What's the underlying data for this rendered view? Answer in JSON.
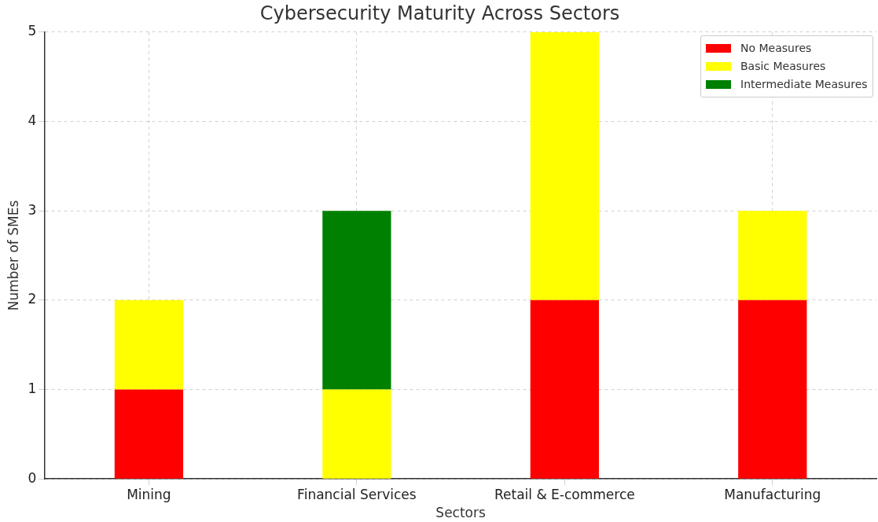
{
  "chart_data": {
    "type": "bar",
    "title": "Cybersecurity Maturity Across Sectors",
    "xlabel": "Sectors",
    "ylabel": "Number of SMEs",
    "categories": [
      "Mining",
      "Financial Services",
      "Retail & E-commerce",
      "Manufacturing"
    ],
    "stacked": true,
    "grid": true,
    "legend": "top right",
    "ylim": [
      0,
      5
    ],
    "yticks": [
      0,
      1,
      2,
      3,
      4,
      5
    ],
    "series": [
      {
        "name": "No Measures",
        "color": "#ff0000",
        "values": [
          1,
          0,
          2,
          2
        ]
      },
      {
        "name": "Basic Measures",
        "color": "#ffff00",
        "values": [
          1,
          1,
          3,
          1
        ]
      },
      {
        "name": "Intermediate Measures",
        "color": "#008000",
        "values": [
          0,
          2,
          0,
          0
        ]
      }
    ]
  }
}
